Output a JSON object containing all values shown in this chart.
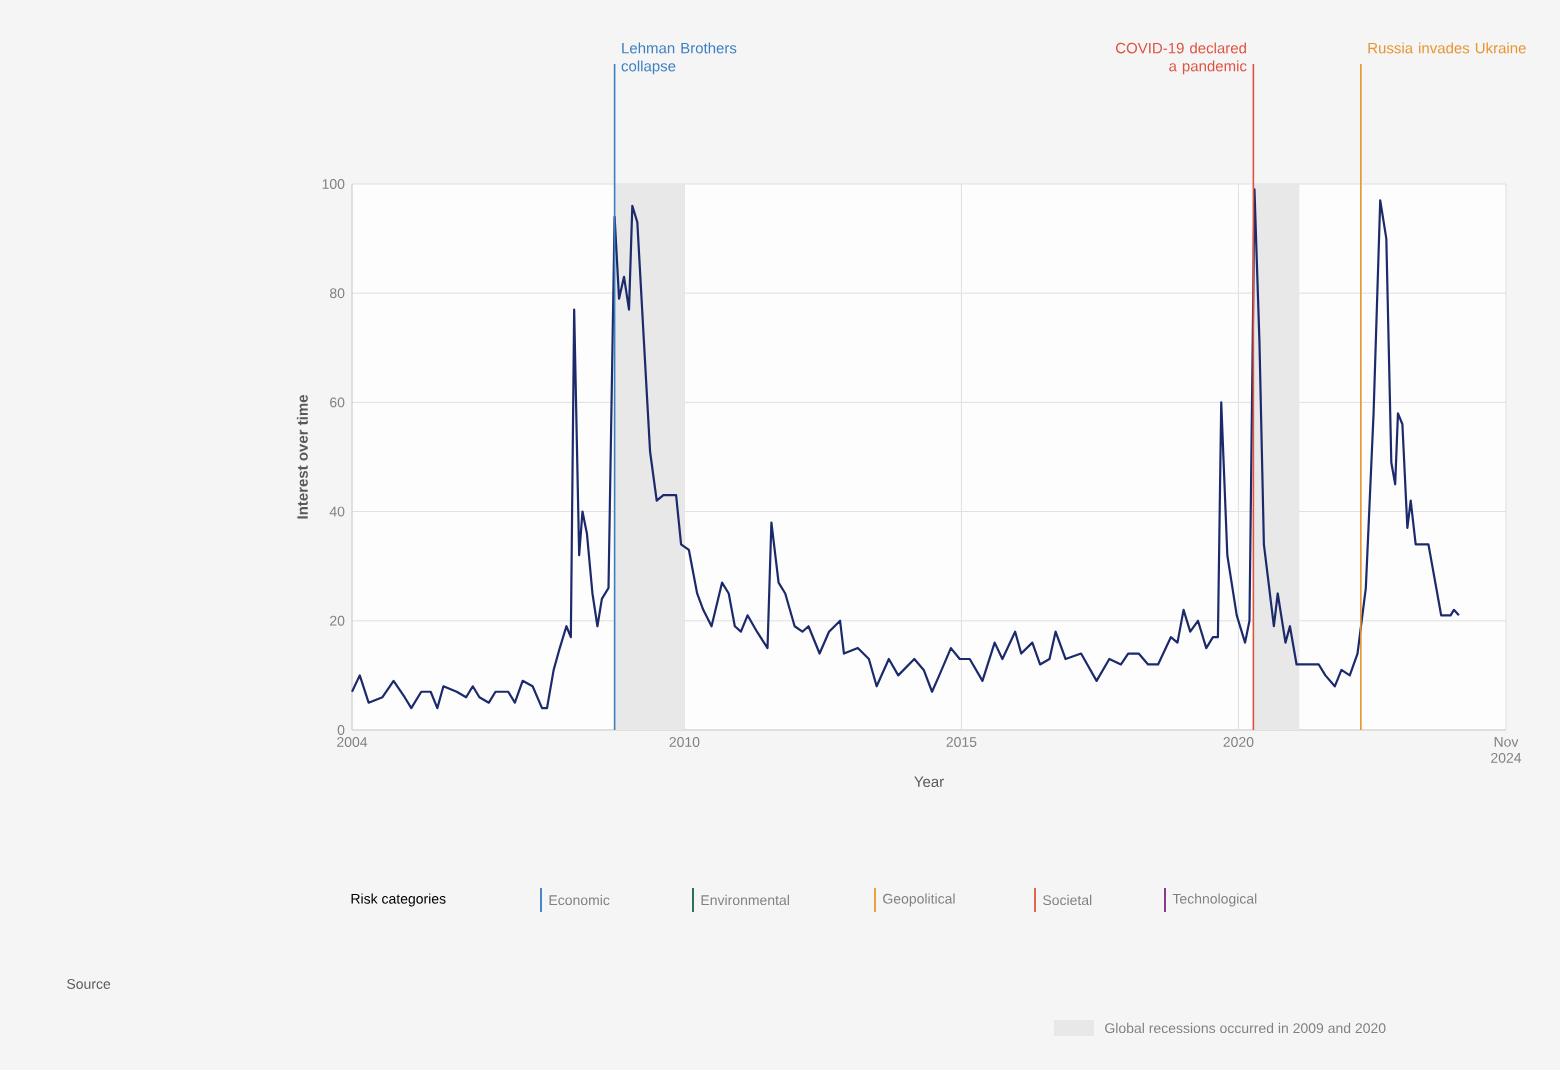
{
  "chart_data": {
    "type": "line",
    "xlabel": "Year",
    "ylabel": "Interest over time",
    "legend_title": "Risk categories",
    "x": [
      2004.0,
      2004.14,
      2004.3,
      2004.55,
      2004.75,
      2004.95,
      2005.07,
      2005.25,
      2005.42,
      2005.54,
      2005.65,
      2005.89,
      2006.06,
      2006.18,
      2006.3,
      2006.47,
      2006.59,
      2006.82,
      2006.94,
      2007.08,
      2007.26,
      2007.43,
      2007.52,
      2007.64,
      2007.75,
      2007.87,
      2007.95,
      2008.01,
      2008.1,
      2008.16,
      2008.24,
      2008.34,
      2008.43,
      2008.51,
      2008.63,
      2008.74,
      2008.82,
      2008.91,
      2009.0,
      2009.06,
      2009.15,
      2009.27,
      2009.38,
      2009.5,
      2009.62,
      2009.85,
      2009.94,
      2010.08,
      2010.23,
      2010.34,
      2010.49,
      2010.68,
      2010.8,
      2010.91,
      2011.02,
      2011.14,
      2011.31,
      2011.5,
      2011.57,
      2011.7,
      2011.82,
      2011.99,
      2012.13,
      2012.24,
      2012.44,
      2012.61,
      2012.81,
      2012.88,
      2013.13,
      2013.33,
      2013.47,
      2013.69,
      2013.86,
      2014.15,
      2014.32,
      2014.47,
      2014.6,
      2014.81,
      2014.97,
      2015.15,
      2015.38,
      2015.6,
      2015.74,
      2015.97,
      2016.08,
      2016.28,
      2016.42,
      2016.59,
      2016.7,
      2016.88,
      2017.16,
      2017.44,
      2017.67,
      2017.88,
      2018.01,
      2018.2,
      2018.37,
      2018.55,
      2018.78,
      2018.9,
      2019.01,
      2019.13,
      2019.27,
      2019.42,
      2019.54,
      2019.63,
      2019.69,
      2019.8,
      2019.97,
      2020.12,
      2020.2,
      2020.29,
      2020.38,
      2020.46,
      2020.64,
      2020.71,
      2020.85,
      2020.93,
      2021.05,
      2021.45,
      2021.57,
      2021.74,
      2021.86,
      2022.01,
      2022.15,
      2022.3,
      2022.44,
      2022.56,
      2022.67,
      2022.76,
      2022.83,
      2022.88,
      2022.96,
      2023.05,
      2023.11,
      2023.2,
      2023.43,
      2023.66,
      2023.83,
      2023.89,
      2023.98
    ],
    "series": [
      {
        "color": "#1c2a6b",
        "values": [
          7,
          10,
          5,
          6,
          9,
          6,
          4,
          7,
          7,
          4,
          8,
          7,
          6,
          8,
          6,
          5,
          7,
          7,
          5,
          9,
          8,
          4,
          4,
          11,
          15,
          19,
          17,
          77,
          32,
          40,
          36,
          25,
          19,
          24,
          26,
          94,
          79,
          83,
          77,
          96,
          93,
          71,
          51,
          42,
          43,
          43,
          34,
          33,
          25,
          22,
          19,
          27,
          25,
          19,
          18,
          21,
          18,
          15,
          38,
          27,
          25,
          19,
          18,
          19,
          14,
          18,
          20,
          14,
          15,
          13,
          8,
          13,
          10,
          13,
          11,
          7,
          10,
          15,
          13,
          13,
          9,
          16,
          13,
          18,
          14,
          16,
          12,
          13,
          18,
          13,
          14,
          9,
          13,
          12,
          14,
          14,
          12,
          12,
          17,
          16,
          22,
          18,
          20,
          15,
          17,
          17,
          60,
          32,
          21,
          16,
          20,
          99,
          71,
          34,
          19,
          25,
          16,
          19,
          12,
          12,
          10,
          8,
          11,
          10,
          14,
          26,
          58,
          97,
          90,
          49,
          45,
          58,
          56,
          37,
          42,
          34,
          34,
          21,
          21,
          22,
          21
        ]
      }
    ],
    "xlim": [
      2004,
      2024.83
    ],
    "ylim": [
      0,
      100
    ],
    "xticks": [
      2004,
      2010,
      2015,
      2020,
      {
        "value": 2024.83,
        "label": "Nov 2024"
      }
    ],
    "yticks": [
      0,
      20,
      40,
      60,
      80,
      100
    ],
    "grid": true,
    "ref_lines": [
      {
        "axis": "x",
        "value": 2008.74,
        "label": "Lehman Brothers collapse",
        "color": "#3a7fc0"
      },
      {
        "axis": "x",
        "value": 2020.27,
        "label": "COVID-19 declared a pandemic",
        "color": "#e0523f"
      },
      {
        "axis": "x",
        "value": 2022.21,
        "label": "Russia invades Ukraine",
        "color": "#e8942e"
      }
    ],
    "bands": [
      {
        "axis": "x",
        "from": 2008.74,
        "to": 2010.0,
        "color": "#e8e8e8"
      },
      {
        "axis": "x",
        "from": 2020.27,
        "to": 2021.1,
        "color": "#e8e8e8"
      }
    ],
    "annotations": [
      "Economic",
      "Environmental",
      "Geopolitical",
      "Societal",
      "Technological",
      "Source",
      "Global recessions occurred in 2009 and 2020"
    ]
  }
}
